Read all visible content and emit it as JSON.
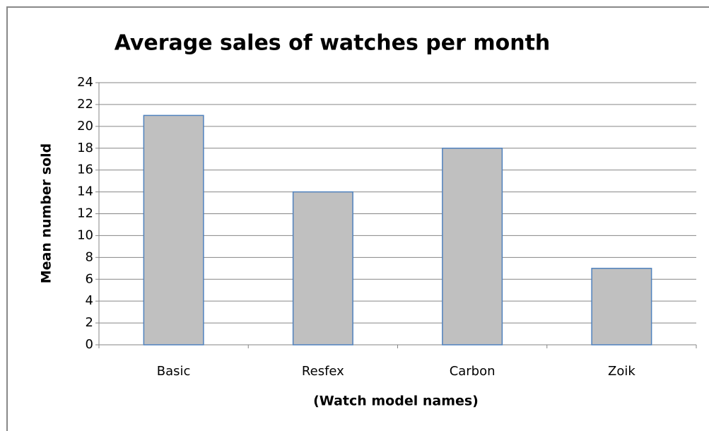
{
  "chart_data": {
    "type": "bar",
    "title": "Average sales of watches per month",
    "categories": [
      "Basic",
      "Resfex",
      "Carbon",
      "Zoik"
    ],
    "values": [
      21,
      14,
      18,
      7
    ],
    "color": "#c0c0c0",
    "edgecolor": "#4f81bd",
    "xlabel": "(Watch model names)",
    "ylabel": "Mean number sold",
    "ylim": [
      0,
      24
    ],
    "yticks": [
      0,
      2,
      4,
      6,
      8,
      10,
      12,
      14,
      16,
      18,
      20,
      22,
      24
    ],
    "grid": true
  }
}
